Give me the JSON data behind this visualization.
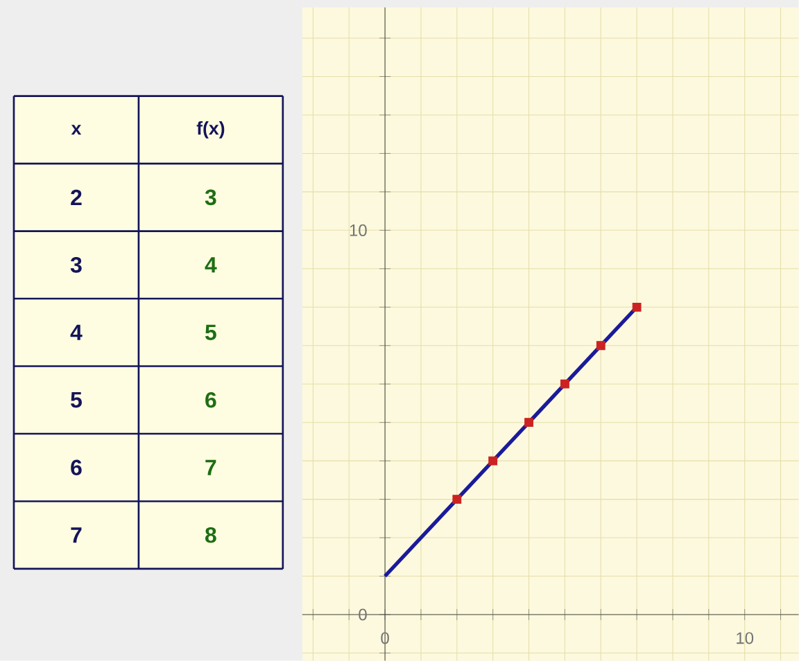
{
  "chart_data": {
    "type": "line",
    "annotations": [
      "x",
      "f(x)",
      "2",
      "3",
      "3",
      "4",
      "4",
      "5",
      "5",
      "6",
      "6",
      "7",
      "7",
      "8"
    ],
    "series": [
      {
        "color": "#1a1a9a",
        "x": [
          0,
          7
        ],
        "values": [
          1,
          8
        ],
        "marker": "none"
      },
      {
        "type": "scatter",
        "color": "#cc2222",
        "x": [
          2,
          3,
          4,
          5,
          6,
          7
        ],
        "values": [
          3,
          4,
          5,
          6,
          7,
          8
        ],
        "marker": "square"
      }
    ],
    "xlim": [
      -2.3,
      11.5
    ],
    "ylim": [
      -1.2,
      15.8
    ],
    "xticks": [
      {
        "value": -2,
        "label": null
      },
      {
        "value": -1,
        "label": null
      },
      0,
      {
        "value": 1,
        "label": null
      },
      {
        "value": 2,
        "label": null
      },
      {
        "value": 3,
        "label": null
      },
      {
        "value": 4,
        "label": null
      },
      {
        "value": 5,
        "label": null
      },
      {
        "value": 6,
        "label": null
      },
      {
        "value": 7,
        "label": null
      },
      {
        "value": 8,
        "label": null
      },
      {
        "value": 9,
        "label": null
      },
      10,
      {
        "value": 11,
        "label": null
      }
    ],
    "yticks": [
      {
        "value": -1,
        "label": null
      },
      0,
      {
        "value": 1,
        "label": null
      },
      {
        "value": 2,
        "label": null
      },
      {
        "value": 3,
        "label": null
      },
      {
        "value": 4,
        "label": null
      },
      {
        "value": 5,
        "label": null
      },
      {
        "value": 6,
        "label": null
      },
      {
        "value": 7,
        "label": null
      },
      {
        "value": 8,
        "label": null
      },
      {
        "value": 9,
        "label": null
      },
      10,
      {
        "value": 11,
        "label": null
      },
      {
        "value": 12,
        "label": null
      },
      {
        "value": 13,
        "label": null
      },
      {
        "value": 14,
        "label": null
      },
      {
        "value": 15,
        "label": null
      }
    ],
    "grid": true
  }
}
